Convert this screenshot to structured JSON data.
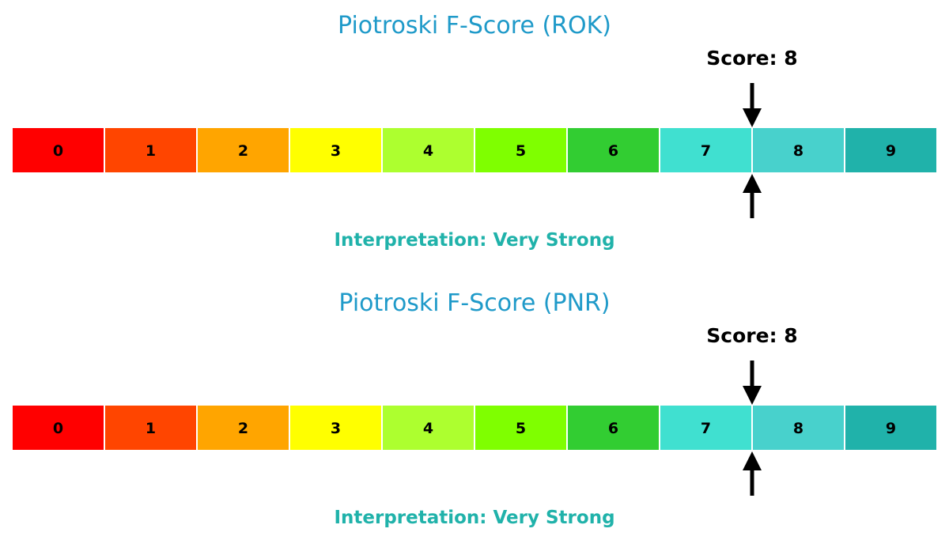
{
  "chart_data": [
    {
      "type": "gauge",
      "title": "Piotroski F-Score (ROK)",
      "categories": [
        "0",
        "1",
        "2",
        "3",
        "4",
        "5",
        "6",
        "7",
        "8",
        "9"
      ],
      "colors": [
        "#ff0000",
        "#ff4500",
        "#ffa500",
        "#ffff00",
        "#adff2f",
        "#7fff00",
        "#32cd32",
        "#40e0d0",
        "#48d1cc",
        "#20b2aa"
      ],
      "score": 8,
      "score_label": "Score: 8",
      "interpretation": "Interpretation: Very Strong",
      "interpretation_color": "#20b2aa",
      "title_color": "#1f9ac9"
    },
    {
      "type": "gauge",
      "title": "Piotroski F-Score (PNR)",
      "categories": [
        "0",
        "1",
        "2",
        "3",
        "4",
        "5",
        "6",
        "7",
        "8",
        "9"
      ],
      "colors": [
        "#ff0000",
        "#ff4500",
        "#ffa500",
        "#ffff00",
        "#adff2f",
        "#7fff00",
        "#32cd32",
        "#40e0d0",
        "#48d1cc",
        "#20b2aa"
      ],
      "score": 8,
      "score_label": "Score: 8",
      "interpretation": "Interpretation: Very Strong",
      "interpretation_color": "#20b2aa",
      "title_color": "#1f9ac9"
    }
  ]
}
